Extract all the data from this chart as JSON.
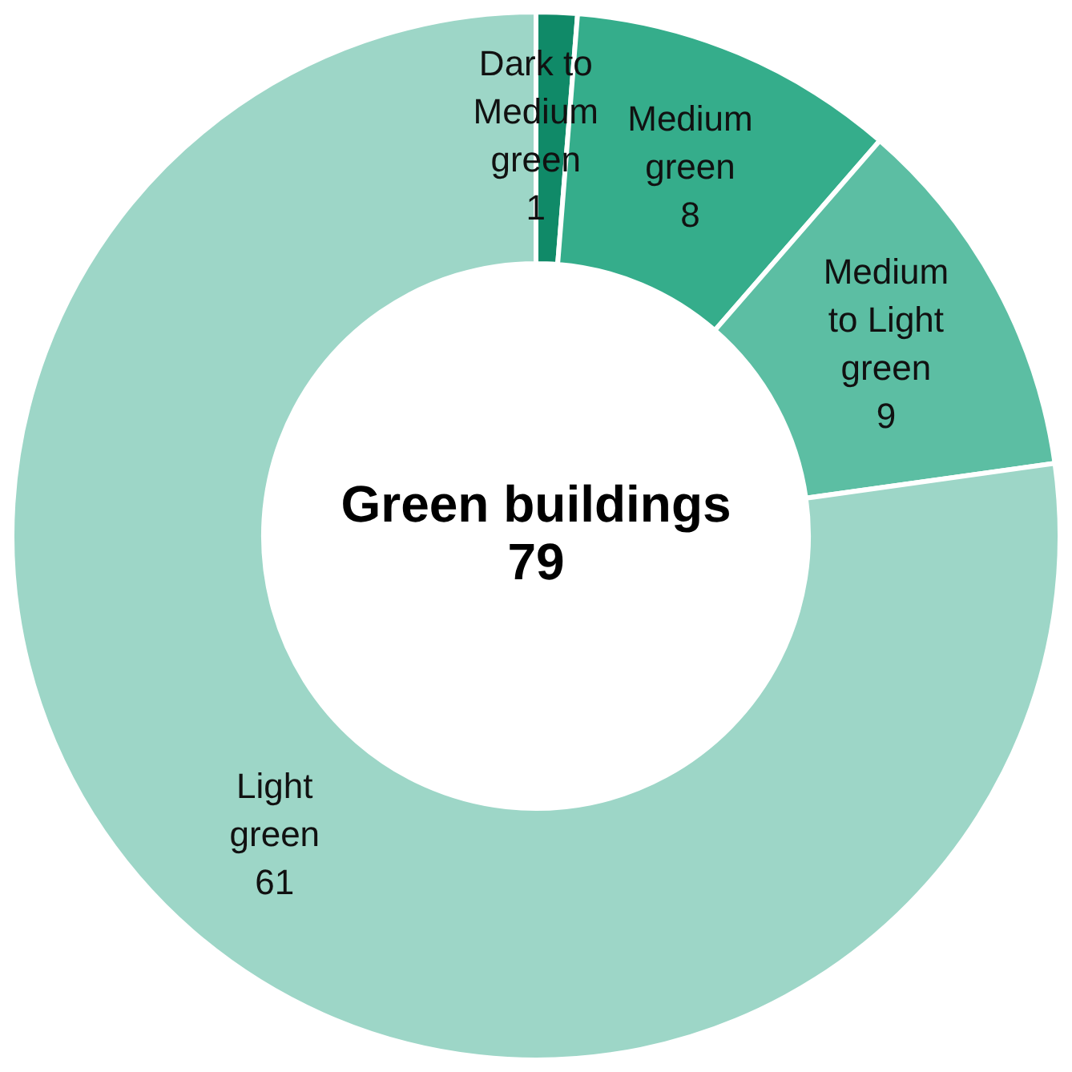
{
  "chart_data": {
    "type": "donut",
    "title": "Green buildings",
    "annotations": [
      "79"
    ],
    "categories": [
      "Dark to Medium green",
      "Medium green",
      "Medium to Light green",
      "Light green"
    ],
    "values": [
      1,
      8,
      9,
      61
    ],
    "colors": [
      "#108a68",
      "#35ad8b",
      "#5cbea3",
      "#9dd6c7"
    ],
    "data_labels": true,
    "legend": false
  }
}
